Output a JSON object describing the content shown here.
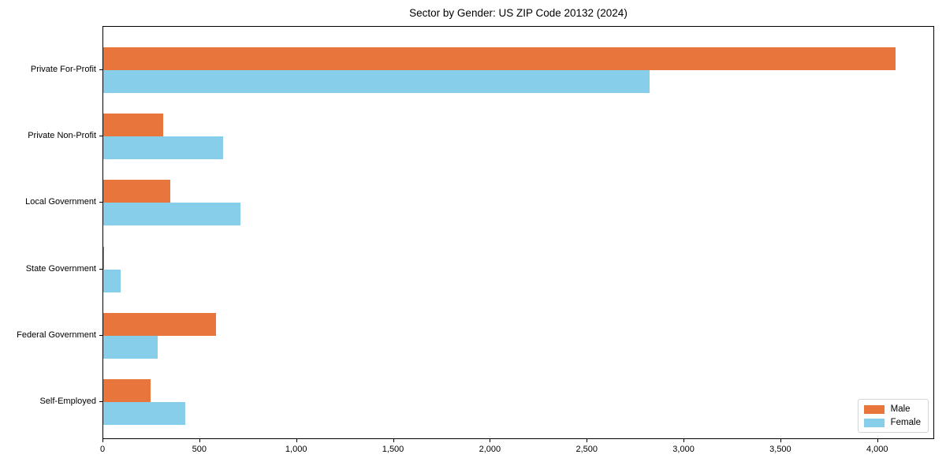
{
  "title": "Sector by Gender: US ZIP Code 20132 (2024)",
  "colors": {
    "male": "#e8763c",
    "female": "#87ceeb",
    "axis": "#000000",
    "legend_border": "#d5d5d5",
    "background": "#ffffff"
  },
  "chart_data": {
    "type": "bar",
    "orientation": "horizontal",
    "title": "Sector by Gender: US ZIP Code 20132 (2024)",
    "categories": [
      "Private For-Profit",
      "Private Non-Profit",
      "Local Government",
      "State Government",
      "Federal Government",
      "Self-Employed"
    ],
    "series": [
      {
        "name": "Male",
        "color": "#e8763c",
        "values": [
          4090,
          310,
          345,
          5,
          580,
          245
        ]
      },
      {
        "name": "Female",
        "color": "#87ceeb",
        "values": [
          2820,
          620,
          710,
          90,
          280,
          425
        ]
      }
    ],
    "xlabel": "",
    "ylabel": "",
    "xlim": [
      0,
      4294
    ],
    "xticks": [
      0,
      500,
      1000,
      1500,
      2000,
      2500,
      3000,
      3500,
      4000
    ],
    "xtick_labels": [
      "0",
      "500",
      "1,000",
      "1,500",
      "2,000",
      "2,500",
      "3,000",
      "3,500",
      "4,000"
    ],
    "grid": false,
    "legend_position": "lower right"
  },
  "legend": {
    "items": [
      {
        "label": "Male"
      },
      {
        "label": "Female"
      }
    ]
  }
}
